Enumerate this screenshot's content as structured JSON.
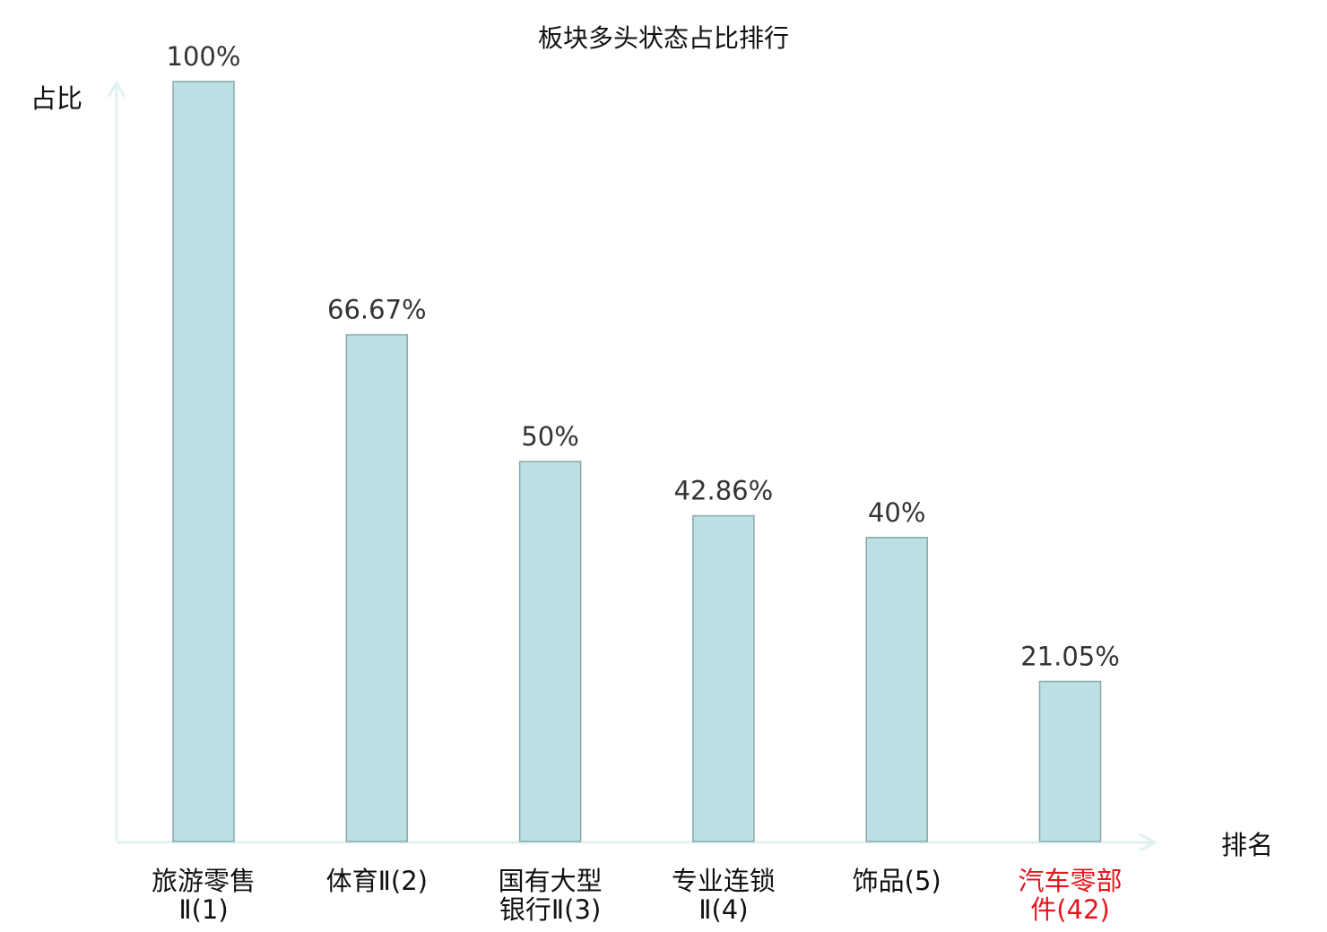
{
  "chart_data": {
    "type": "bar",
    "title": "板块多头状态占比排行",
    "ylabel": "占比",
    "xlabel": "排名",
    "ylim": [
      0,
      100
    ],
    "grid": false,
    "categories": [
      [
        "旅游零售",
        "Ⅱ(1)"
      ],
      [
        "体育Ⅱ(2)"
      ],
      [
        "国有大型",
        "银行Ⅱ(3)"
      ],
      [
        "专业连锁",
        "Ⅱ(4)"
      ],
      [
        "饰品(5)"
      ],
      [
        "汽车零部",
        "件(42)"
      ]
    ],
    "values": [
      100,
      66.67,
      50,
      42.86,
      40,
      21.05
    ],
    "data_labels": [
      "100%",
      "66.67%",
      "50%",
      "42.86%",
      "40%",
      "21.05%"
    ],
    "highlighted_category_index": 5,
    "colors": {
      "bar_fill": "#bce0e3",
      "bar_stroke": "#8aa8ab",
      "axis": "#e0f2f0",
      "label": "#111111",
      "data_label": "#333333",
      "highlight": "#e8141c"
    }
  }
}
